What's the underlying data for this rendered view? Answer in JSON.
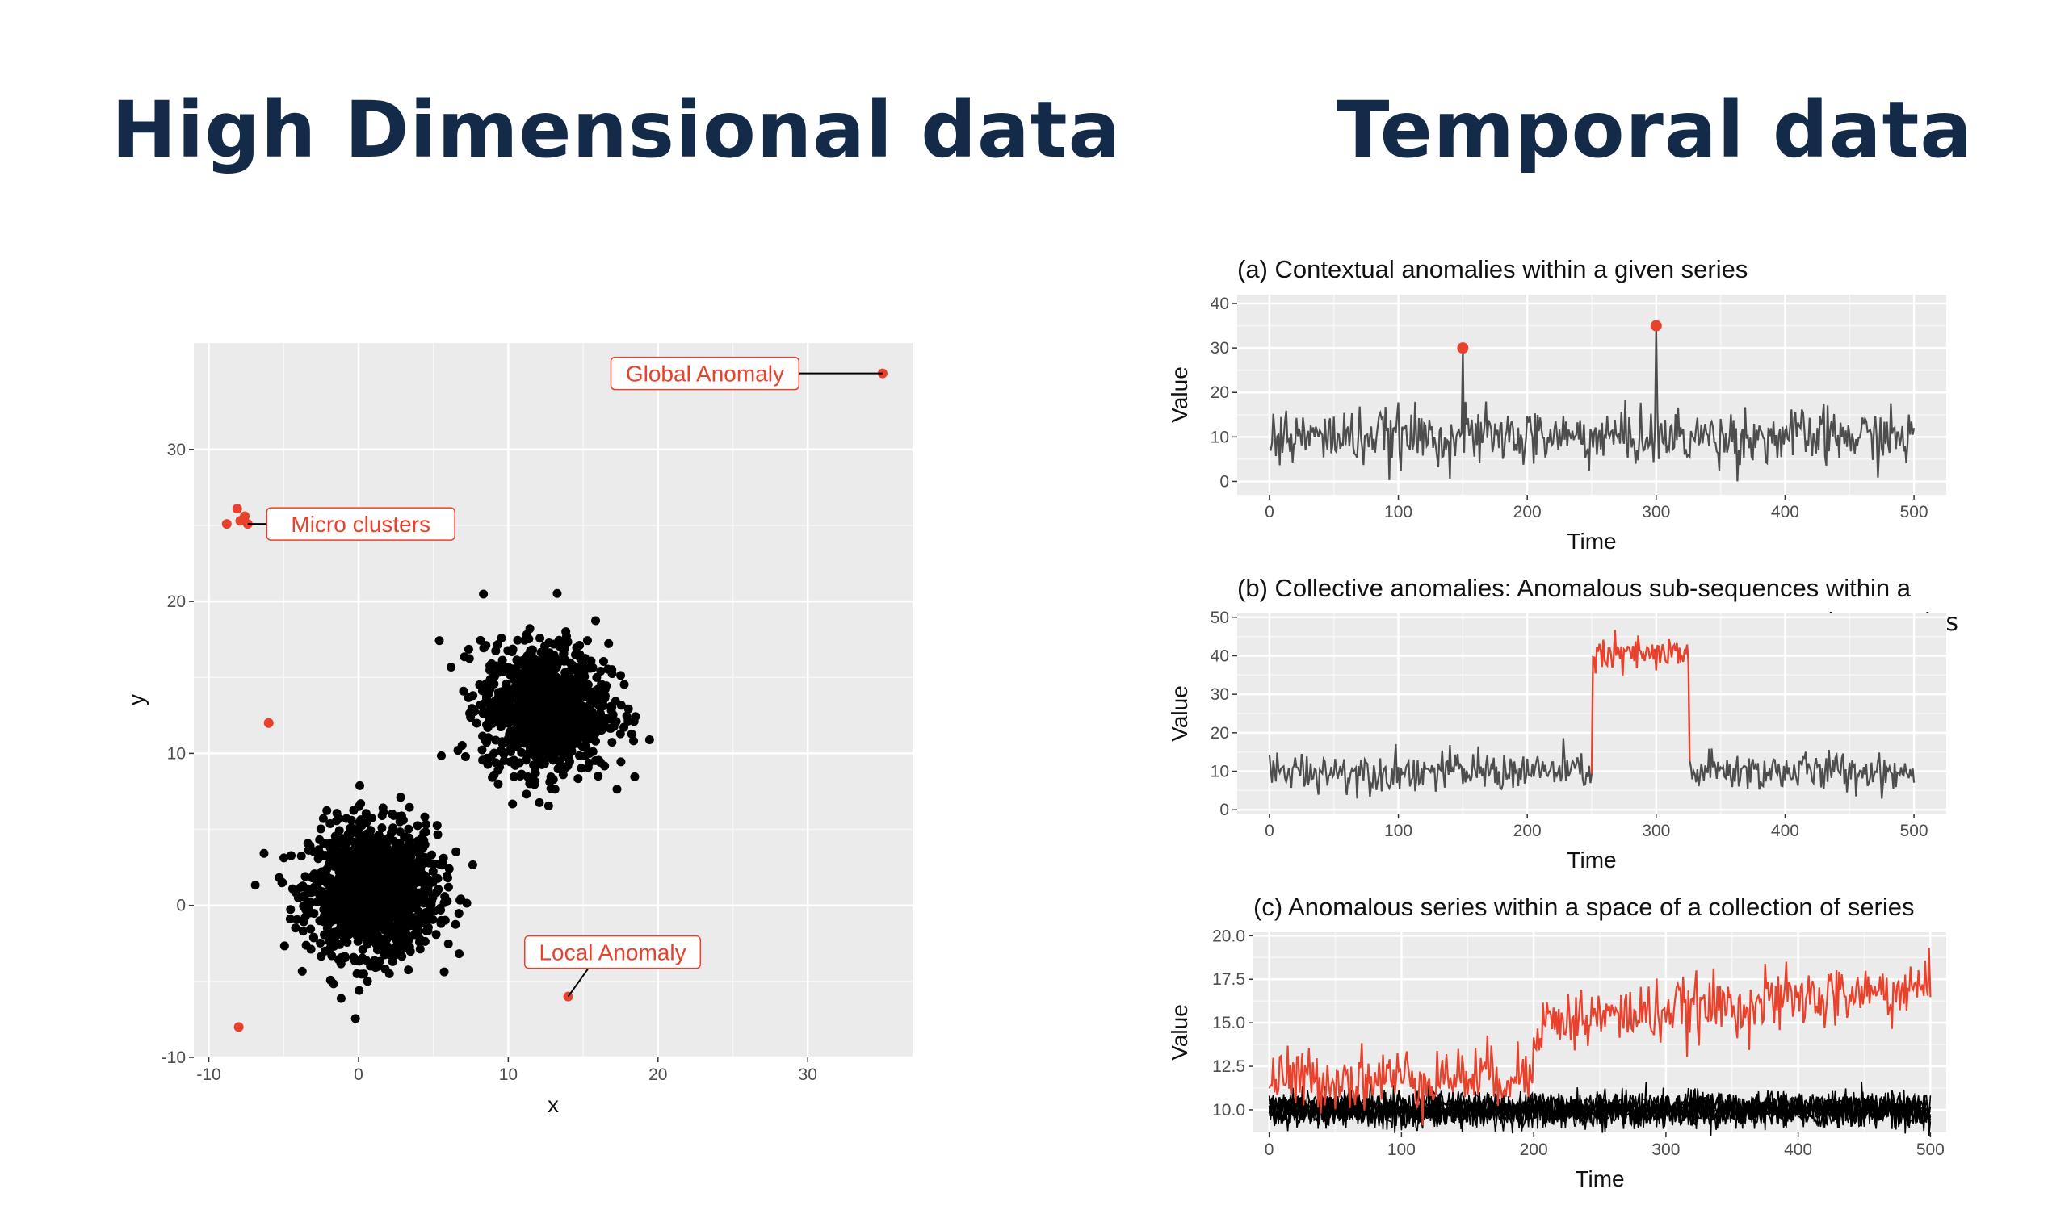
{
  "headings": {
    "left": "High Dimensional data",
    "right": "Temporal data"
  },
  "colors": {
    "heading": "#132a49",
    "anomaly": "#e8412c",
    "normal": "#000000",
    "series": "#4d4d4d",
    "panel": "#ebebeb",
    "grid": "#ffffff"
  },
  "chart_data": [
    {
      "type": "scatter",
      "title": "",
      "xlabel": "x",
      "ylabel": "y",
      "xlim": [
        -11,
        37
      ],
      "ylim": [
        -10,
        37
      ],
      "xticks": [
        -10,
        0,
        10,
        20,
        30
      ],
      "yticks": [
        -10,
        0,
        10,
        20,
        30
      ],
      "xtick_labels": [
        "-10",
        "0",
        "10",
        "20",
        "30"
      ],
      "ytick_labels": [
        "-10",
        "0",
        "10",
        "20",
        "30"
      ],
      "grid": true,
      "clusters": [
        {
          "center": [
            1,
            1
          ],
          "sd": 2.1,
          "n": 1400,
          "color": "#000000"
        },
        {
          "center": [
            12.5,
            13
          ],
          "sd": 2.1,
          "n": 1100,
          "color": "#000000"
        }
      ],
      "anomalies": [
        {
          "x": 35,
          "y": 35
        },
        {
          "x": -8.8,
          "y": 25.1
        },
        {
          "x": -8.1,
          "y": 26.1
        },
        {
          "x": -7.6,
          "y": 25.6
        },
        {
          "x": -7.4,
          "y": 25.1
        },
        {
          "x": -7.9,
          "y": 25.3
        },
        {
          "x": -6,
          "y": 12
        },
        {
          "x": 14,
          "y": -6
        },
        {
          "x": -8,
          "y": -8
        }
      ],
      "annotations": [
        {
          "label": "Global Anomaly",
          "x": 35,
          "y": 35
        },
        {
          "label": "Micro clusters",
          "x": -7.4,
          "y": 25.1
        },
        {
          "label": "Local Anomaly",
          "x": 14,
          "y": -6
        }
      ]
    },
    {
      "type": "line",
      "title": "(a) Contextual anomalies within a  given series",
      "xlabel": "Time",
      "ylabel": "Value",
      "xlim": [
        -25,
        525
      ],
      "ylim": [
        -3,
        42
      ],
      "xticks": [
        0,
        100,
        200,
        300,
        400,
        500
      ],
      "yticks": [
        0,
        10,
        20,
        30,
        40
      ],
      "xtick_labels": [
        "0",
        "100",
        "200",
        "300",
        "400",
        "500"
      ],
      "ytick_labels": [
        "0",
        "10",
        "20",
        "30",
        "40"
      ],
      "n": 500,
      "base": 10,
      "noise": 3.2,
      "spikes": [
        {
          "x": 150,
          "y": 30
        },
        {
          "x": 300,
          "y": 35
        }
      ],
      "anomaly_points": [
        {
          "x": 150,
          "y": 30
        },
        {
          "x": 300,
          "y": 35
        }
      ]
    },
    {
      "type": "line",
      "title": "(b) Collective anomalies: Anomalous sub-sequences within a",
      "title_line2": "given series",
      "xlabel": "Time",
      "ylabel": "Value",
      "xlim": [
        -25,
        525
      ],
      "ylim": [
        -1,
        51
      ],
      "xticks": [
        0,
        100,
        200,
        300,
        400,
        500
      ],
      "yticks": [
        0,
        10,
        20,
        30,
        40,
        50
      ],
      "xtick_labels": [
        "0",
        "100",
        "200",
        "300",
        "400",
        "500"
      ],
      "ytick_labels": [
        "0",
        "10",
        "20",
        "30",
        "40",
        "50"
      ],
      "n": 500,
      "base": 10,
      "noise": 2.6,
      "anomalous_segment": {
        "start": 250,
        "end": 326,
        "level": 40,
        "noise": 2.6
      }
    },
    {
      "type": "line",
      "title": "(c) Anomalous series within a space of a collection of series",
      "xlabel": "Time",
      "ylabel": "Value",
      "xlim": [
        -12,
        512
      ],
      "ylim": [
        8.7,
        20.2
      ],
      "xticks": [
        0,
        100,
        200,
        300,
        400,
        500
      ],
      "yticks": [
        10,
        12.5,
        15,
        17.5,
        20
      ],
      "xtick_labels": [
        "0",
        "100",
        "200",
        "300",
        "400",
        "500"
      ],
      "ytick_labels": [
        "10.0",
        "12.5",
        "15.0",
        "17.5",
        "20.0"
      ],
      "n": 500,
      "normal_series": {
        "count": 8,
        "level": 10,
        "noise": 0.45
      },
      "anomalous_series": {
        "start_level": 12,
        "jump_at": 200,
        "jump_to": 15,
        "end_level": 17,
        "noise": 0.9
      }
    }
  ]
}
